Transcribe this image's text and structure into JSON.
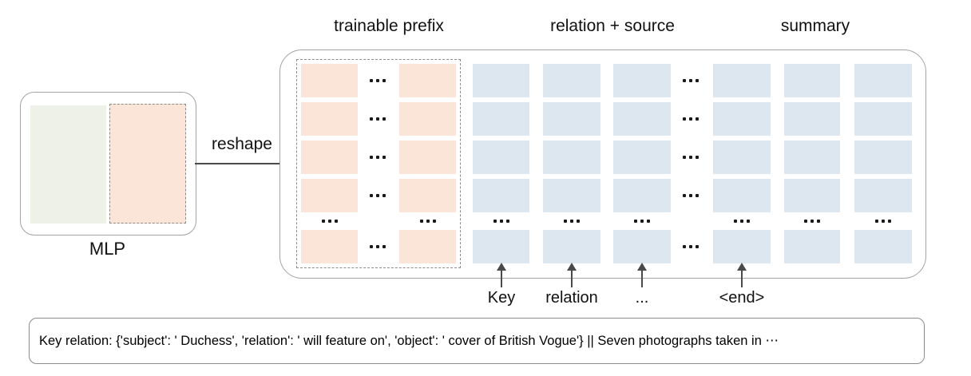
{
  "figure": {
    "mlp_label": "MLP",
    "reshape_label": "reshape",
    "section_labels": {
      "prefix": "trainable prefix",
      "relation_source": "relation + source",
      "summary": "summary"
    },
    "grid": {
      "row_types": [
        "box",
        "box",
        "box",
        "box",
        "ellipsis",
        "box"
      ],
      "columns": [
        {
          "name": "prefix-col-1",
          "type": "box",
          "fill": "peach",
          "section": "trainable prefix"
        },
        {
          "name": "prefix-ellipsis",
          "type": "ellipsis",
          "section": "trainable prefix"
        },
        {
          "name": "prefix-col-2",
          "type": "box",
          "fill": "peach",
          "section": "trainable prefix"
        },
        {
          "name": "token-col-key",
          "type": "box",
          "fill": "blue",
          "section": "relation + source"
        },
        {
          "name": "token-col-relation",
          "type": "box",
          "fill": "blue",
          "section": "relation + source"
        },
        {
          "name": "token-col-more",
          "type": "box",
          "fill": "blue",
          "section": "relation + source"
        },
        {
          "name": "token-ellipsis",
          "type": "ellipsis",
          "section": "relation + source"
        },
        {
          "name": "token-col-end",
          "type": "box",
          "fill": "blue",
          "section": "summary"
        },
        {
          "name": "summary-col-1",
          "type": "box",
          "fill": "blue",
          "section": "summary"
        },
        {
          "name": "summary-col-2",
          "type": "box",
          "fill": "blue",
          "section": "summary"
        }
      ]
    },
    "token_pointers": [
      {
        "name": "key",
        "label": "Key"
      },
      {
        "name": "relation",
        "label": "relation"
      },
      {
        "name": "more",
        "label": "..."
      },
      {
        "name": "end",
        "label": "<end>"
      }
    ],
    "input_text": "Key relation: {'subject': ' Duchess', 'relation': ' will feature on', 'object': ' cover of British Vogue'} || Seven photographs taken in ⋯",
    "colors": {
      "peach": "#fbe5d8",
      "green": "#eef1e8",
      "blue": "#dde7f0",
      "box_border": "#a3a3a3",
      "dashed_border": "#8c8c8c",
      "arrow": "#4a4a4a",
      "dots": "#1a1a1a",
      "text": "#111111"
    }
  }
}
